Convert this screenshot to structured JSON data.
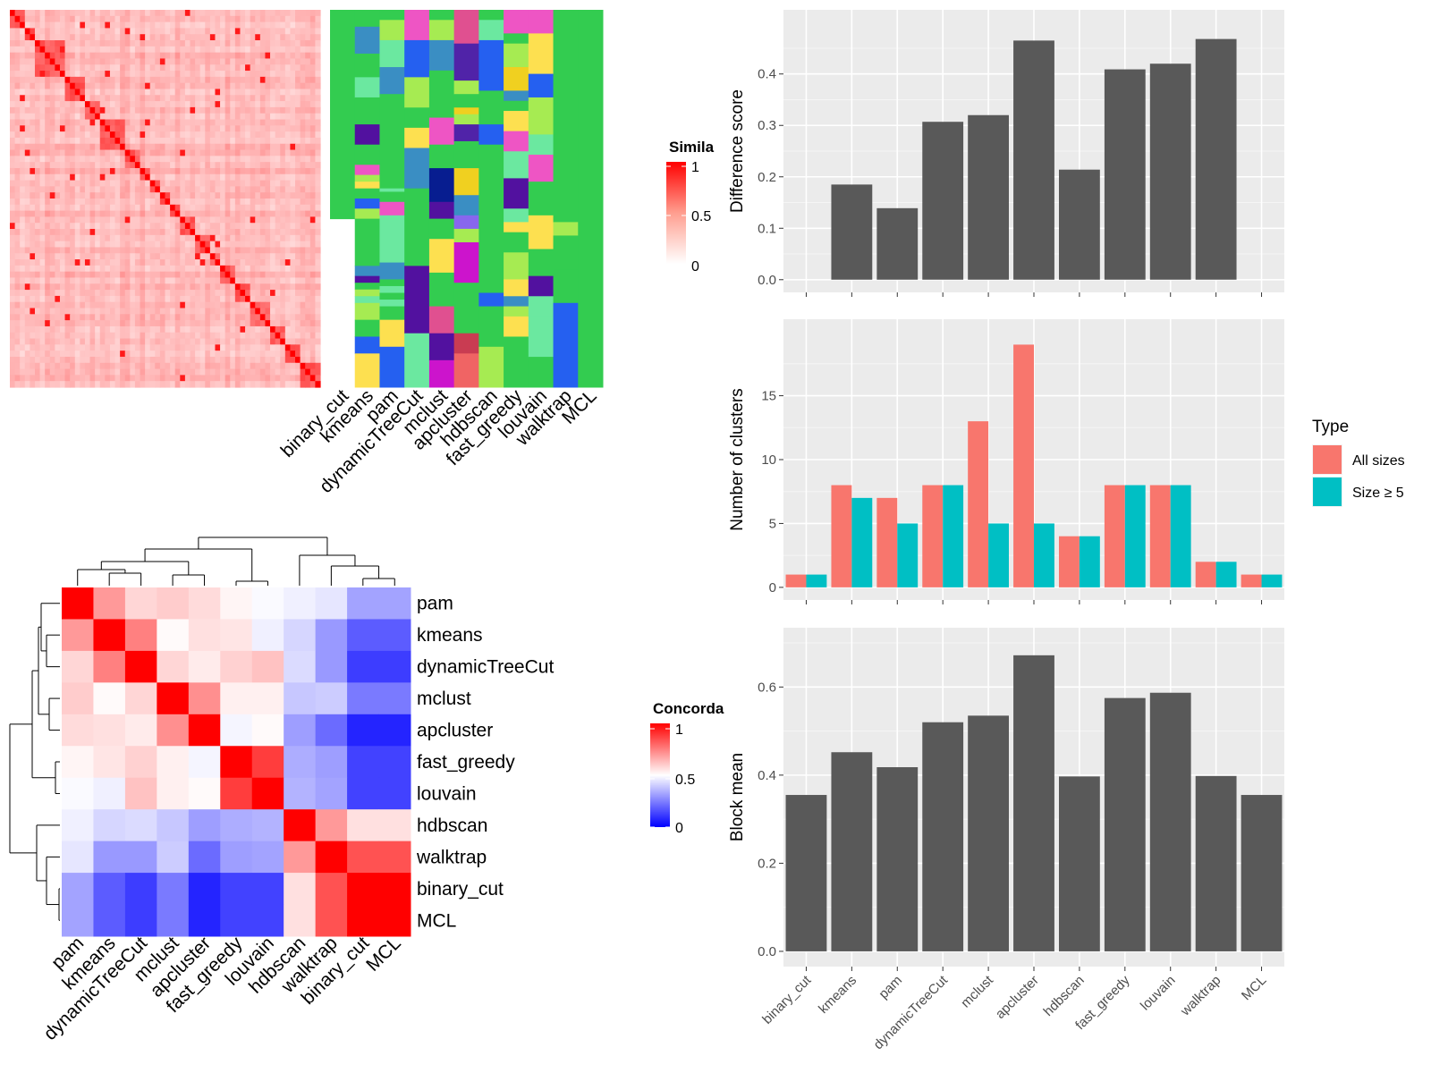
{
  "colors": {
    "panel_bg": "#EBEBEB",
    "grid": "#FFFFFF",
    "bar_gray": "#595959",
    "all_sizes": "#F8766D",
    "size_ge5": "#00BFC4",
    "sim_high": "#FF0000",
    "conc_low": "#0000FF"
  },
  "similarity_heatmap": {
    "legend_title": "Simila",
    "legend_ticks": [
      "1",
      "0.5",
      "0"
    ],
    "n": 62,
    "method_labels": [
      "binary_cut",
      "kmeans",
      "pam",
      "dynamicTreeCut",
      "mclust",
      "apcluster",
      "hdbscan",
      "fast_greedy",
      "louvain",
      "walktrap",
      "MCL"
    ],
    "palette": [
      "#33CC50",
      "#A6EB52",
      "#FDE050",
      "#F0D020",
      "#EE55C4",
      "#CC14CC",
      "#E05090",
      "#5080CF",
      "#2560F0",
      "#3A8EC3",
      "#6BE8A0",
      "#52119F",
      "#5023A8",
      "#071D90",
      "#C93C52",
      "#F06464",
      "#46B6A2",
      "#8866EE"
    ],
    "cluster_columns": [
      [
        {
          "s": 0,
          "n": 62,
          "c": 0
        }
      ],
      [
        {
          "s": 0,
          "n": 5,
          "c": 0
        },
        {
          "s": 5,
          "n": 8,
          "c": 9
        },
        {
          "s": 13,
          "n": 7,
          "c": 0
        },
        {
          "s": 20,
          "n": 6,
          "c": 10
        },
        {
          "s": 26,
          "n": 8,
          "c": 0
        },
        {
          "s": 34,
          "n": 6,
          "c": 11
        },
        {
          "s": 40,
          "n": 6,
          "c": 0
        },
        {
          "s": 46,
          "n": 3,
          "c": 4
        },
        {
          "s": 49,
          "n": 2,
          "c": 1
        },
        {
          "s": 51,
          "n": 2,
          "c": 2
        },
        {
          "s": 53,
          "n": 3,
          "c": 0
        },
        {
          "s": 56,
          "n": 3,
          "c": 8
        },
        {
          "s": 59,
          "n": 3,
          "c": 1
        },
        {
          "s": 62,
          "n": 14,
          "c": 0
        },
        {
          "s": 76,
          "n": 3,
          "c": 9
        },
        {
          "s": 79,
          "n": 2,
          "c": 11
        },
        {
          "s": 81,
          "n": 2,
          "c": 0
        },
        {
          "s": 83,
          "n": 2,
          "c": 1
        },
        {
          "s": 85,
          "n": 2,
          "c": 10
        },
        {
          "s": 87,
          "n": 5,
          "c": 1
        },
        {
          "s": 92,
          "n": 5,
          "c": 0
        },
        {
          "s": 97,
          "n": 5,
          "c": 8
        },
        {
          "s": 102,
          "n": 10,
          "c": 2
        }
      ],
      [
        {
          "s": 0,
          "n": 3,
          "c": 0
        },
        {
          "s": 3,
          "n": 6,
          "c": 1
        },
        {
          "s": 9,
          "n": 8,
          "c": 10
        },
        {
          "s": 17,
          "n": 8,
          "c": 9
        },
        {
          "s": 25,
          "n": 28,
          "c": 0
        },
        {
          "s": 53,
          "n": 1,
          "c": 10
        },
        {
          "s": 54,
          "n": 3,
          "c": 0
        },
        {
          "s": 57,
          "n": 4,
          "c": 4
        },
        {
          "s": 61,
          "n": 14,
          "c": 10
        },
        {
          "s": 75,
          "n": 5,
          "c": 9
        },
        {
          "s": 80,
          "n": 2,
          "c": 0
        },
        {
          "s": 82,
          "n": 2,
          "c": 10
        },
        {
          "s": 84,
          "n": 2,
          "c": 0
        },
        {
          "s": 86,
          "n": 2,
          "c": 10
        },
        {
          "s": 88,
          "n": 4,
          "c": 0
        },
        {
          "s": 92,
          "n": 8,
          "c": 2
        },
        {
          "s": 100,
          "n": 12,
          "c": 8
        }
      ],
      [
        {
          "s": 0,
          "n": 9,
          "c": 4
        },
        {
          "s": 9,
          "n": 11,
          "c": 8
        },
        {
          "s": 20,
          "n": 9,
          "c": 1
        },
        {
          "s": 29,
          "n": 6,
          "c": 0
        },
        {
          "s": 35,
          "n": 6,
          "c": 2
        },
        {
          "s": 41,
          "n": 12,
          "c": 9
        },
        {
          "s": 53,
          "n": 23,
          "c": 0
        },
        {
          "s": 76,
          "n": 20,
          "c": 11
        },
        {
          "s": 96,
          "n": 16,
          "c": 10
        }
      ],
      [
        {
          "s": 0,
          "n": 3,
          "c": 0
        },
        {
          "s": 3,
          "n": 6,
          "c": 1
        },
        {
          "s": 9,
          "n": 9,
          "c": 9
        },
        {
          "s": 18,
          "n": 14,
          "c": 0
        },
        {
          "s": 32,
          "n": 8,
          "c": 4
        },
        {
          "s": 40,
          "n": 7,
          "c": 0
        },
        {
          "s": 47,
          "n": 10,
          "c": 13
        },
        {
          "s": 57,
          "n": 5,
          "c": 11
        },
        {
          "s": 62,
          "n": 6,
          "c": 0
        },
        {
          "s": 68,
          "n": 10,
          "c": 2
        },
        {
          "s": 78,
          "n": 10,
          "c": 0
        },
        {
          "s": 88,
          "n": 8,
          "c": 6
        },
        {
          "s": 96,
          "n": 8,
          "c": 11
        },
        {
          "s": 104,
          "n": 8,
          "c": 5
        }
      ],
      [
        {
          "s": 0,
          "n": 10,
          "c": 6
        },
        {
          "s": 10,
          "n": 11,
          "c": 12
        },
        {
          "s": 21,
          "n": 4,
          "c": 1
        },
        {
          "s": 25,
          "n": 4,
          "c": 0
        },
        {
          "s": 29,
          "n": 2,
          "c": 3
        },
        {
          "s": 31,
          "n": 3,
          "c": 1
        },
        {
          "s": 34,
          "n": 5,
          "c": 12
        },
        {
          "s": 39,
          "n": 8,
          "c": 0
        },
        {
          "s": 47,
          "n": 8,
          "c": 3
        },
        {
          "s": 55,
          "n": 6,
          "c": 9
        },
        {
          "s": 61,
          "n": 4,
          "c": 17
        },
        {
          "s": 65,
          "n": 4,
          "c": 1
        },
        {
          "s": 69,
          "n": 12,
          "c": 5
        },
        {
          "s": 81,
          "n": 15,
          "c": 0
        },
        {
          "s": 96,
          "n": 6,
          "c": 14
        },
        {
          "s": 102,
          "n": 10,
          "c": 15
        }
      ],
      [
        {
          "s": 0,
          "n": 3,
          "c": 0
        },
        {
          "s": 3,
          "n": 6,
          "c": 10
        },
        {
          "s": 9,
          "n": 15,
          "c": 8
        },
        {
          "s": 24,
          "n": 10,
          "c": 0
        },
        {
          "s": 34,
          "n": 6,
          "c": 8
        },
        {
          "s": 40,
          "n": 16,
          "c": 0
        },
        {
          "s": 56,
          "n": 4,
          "c": 0
        },
        {
          "s": 60,
          "n": 24,
          "c": 0
        },
        {
          "s": 84,
          "n": 4,
          "c": 8
        },
        {
          "s": 88,
          "n": 12,
          "c": 0
        },
        {
          "s": 100,
          "n": 12,
          "c": 1
        }
      ],
      [
        {
          "s": 0,
          "n": 7,
          "c": 4
        },
        {
          "s": 7,
          "n": 3,
          "c": 0
        },
        {
          "s": 10,
          "n": 7,
          "c": 1
        },
        {
          "s": 17,
          "n": 7,
          "c": 3
        },
        {
          "s": 24,
          "n": 3,
          "c": 9
        },
        {
          "s": 27,
          "n": 3,
          "c": 0
        },
        {
          "s": 30,
          "n": 6,
          "c": 2
        },
        {
          "s": 36,
          "n": 6,
          "c": 4
        },
        {
          "s": 42,
          "n": 8,
          "c": 10
        },
        {
          "s": 50,
          "n": 9,
          "c": 11
        },
        {
          "s": 59,
          "n": 4,
          "c": 10
        },
        {
          "s": 63,
          "n": 3,
          "c": 2
        },
        {
          "s": 66,
          "n": 6,
          "c": 0
        },
        {
          "s": 72,
          "n": 8,
          "c": 1
        },
        {
          "s": 80,
          "n": 5,
          "c": 2
        },
        {
          "s": 85,
          "n": 3,
          "c": 9
        },
        {
          "s": 88,
          "n": 3,
          "c": 1
        },
        {
          "s": 91,
          "n": 6,
          "c": 2
        },
        {
          "s": 97,
          "n": 15,
          "c": 0
        }
      ],
      [
        {
          "s": 0,
          "n": 7,
          "c": 4
        },
        {
          "s": 7,
          "n": 12,
          "c": 2
        },
        {
          "s": 19,
          "n": 7,
          "c": 8
        },
        {
          "s": 26,
          "n": 11,
          "c": 1
        },
        {
          "s": 37,
          "n": 6,
          "c": 10
        },
        {
          "s": 43,
          "n": 8,
          "c": 4
        },
        {
          "s": 51,
          "n": 10,
          "c": 0
        },
        {
          "s": 61,
          "n": 10,
          "c": 2
        },
        {
          "s": 71,
          "n": 8,
          "c": 0
        },
        {
          "s": 79,
          "n": 6,
          "c": 11
        },
        {
          "s": 85,
          "n": 3,
          "c": 10
        },
        {
          "s": 88,
          "n": 3,
          "c": 10
        },
        {
          "s": 91,
          "n": 12,
          "c": 10
        },
        {
          "s": 103,
          "n": 9,
          "c": 0
        }
      ],
      [
        {
          "s": 0,
          "n": 63,
          "c": 0
        },
        {
          "s": 63,
          "n": 4,
          "c": 1
        },
        {
          "s": 67,
          "n": 10,
          "c": 0
        },
        {
          "s": 77,
          "n": 10,
          "c": 0
        },
        {
          "s": 87,
          "n": 25,
          "c": 8
        }
      ],
      [
        {
          "s": 0,
          "n": 112,
          "c": 0
        }
      ]
    ]
  },
  "concordance_heatmap": {
    "legend_title": "Concorda",
    "legend_ticks": [
      "1",
      "0.5",
      "0"
    ],
    "row_labels": [
      "pam",
      "kmeans",
      "dynamicTreeCut",
      "mclust",
      "apcluster",
      "fast_greedy",
      "louvain",
      "hdbscan",
      "walktrap",
      "binary_cut",
      "MCL"
    ],
    "col_labels": [
      "pam",
      "kmeans",
      "dynamicTreeCut",
      "mclust",
      "apcluster",
      "fast_greedy",
      "louvain",
      "hdbscan",
      "walktrap",
      "binary_cut",
      "MCL"
    ],
    "values": [
      [
        1.0,
        0.7,
        0.58,
        0.6,
        0.57,
        0.52,
        0.49,
        0.47,
        0.45,
        0.32,
        0.32
      ],
      [
        0.7,
        1.0,
        0.75,
        0.51,
        0.56,
        0.55,
        0.47,
        0.42,
        0.3,
        0.18,
        0.18
      ],
      [
        0.58,
        0.75,
        1.0,
        0.58,
        0.54,
        0.59,
        0.62,
        0.43,
        0.3,
        0.12,
        0.12
      ],
      [
        0.6,
        0.51,
        0.58,
        1.0,
        0.72,
        0.53,
        0.53,
        0.39,
        0.4,
        0.24,
        0.24
      ],
      [
        0.57,
        0.56,
        0.54,
        0.72,
        1.0,
        0.48,
        0.51,
        0.31,
        0.21,
        0.07,
        0.07
      ],
      [
        0.52,
        0.55,
        0.59,
        0.53,
        0.48,
        1.0,
        0.88,
        0.34,
        0.31,
        0.13,
        0.13
      ],
      [
        0.49,
        0.47,
        0.62,
        0.53,
        0.51,
        0.88,
        1.0,
        0.35,
        0.32,
        0.13,
        0.13
      ],
      [
        0.47,
        0.42,
        0.43,
        0.39,
        0.31,
        0.34,
        0.35,
        1.0,
        0.7,
        0.56,
        0.56
      ],
      [
        0.45,
        0.3,
        0.3,
        0.4,
        0.21,
        0.31,
        0.32,
        0.7,
        1.0,
        0.84,
        0.84
      ],
      [
        0.32,
        0.18,
        0.12,
        0.24,
        0.07,
        0.13,
        0.13,
        0.56,
        0.84,
        1.0,
        1.0
      ],
      [
        0.32,
        0.18,
        0.12,
        0.24,
        0.07,
        0.13,
        0.13,
        0.56,
        0.84,
        1.0,
        1.0
      ]
    ]
  },
  "chart_data": [
    {
      "type": "bar",
      "panel": "Difference score",
      "ylabel": "Difference score",
      "categories": [
        "binary_cut",
        "kmeans",
        "pam",
        "dynamicTreeCut",
        "mclust",
        "apcluster",
        "hdbscan",
        "fast_greedy",
        "louvain",
        "walktrap",
        "MCL"
      ],
      "values": [
        0.0,
        0.185,
        0.139,
        0.307,
        0.32,
        0.465,
        0.214,
        0.409,
        0.42,
        0.468,
        0.0
      ],
      "ylim": [
        0,
        0.5
      ],
      "yticks": [
        "0.0",
        "0.1",
        "0.2",
        "0.3",
        "0.4"
      ],
      "grid": true
    },
    {
      "type": "bar",
      "panel": "Number of clusters",
      "ylabel": "Number of clusters",
      "categories": [
        "binary_cut",
        "kmeans",
        "pam",
        "dynamicTreeCut",
        "mclust",
        "apcluster",
        "hdbscan",
        "fast_greedy",
        "louvain",
        "walktrap",
        "MCL"
      ],
      "series": [
        {
          "name": "All sizes",
          "values": [
            1,
            8,
            7,
            8,
            13,
            19,
            4,
            8,
            8,
            2,
            1
          ]
        },
        {
          "name": "Size ≥ 5",
          "values": [
            1,
            7,
            5,
            8,
            5,
            5,
            4,
            8,
            8,
            2,
            1
          ]
        }
      ],
      "ylim": [
        0,
        20
      ],
      "yticks": [
        "0",
        "5",
        "10",
        "15"
      ],
      "legend_title": "Type",
      "legend_position": "right",
      "grid": true
    },
    {
      "type": "bar",
      "panel": "Block mean",
      "ylabel": "Block mean",
      "categories": [
        "binary_cut",
        "kmeans",
        "pam",
        "dynamicTreeCut",
        "mclust",
        "apcluster",
        "hdbscan",
        "fast_greedy",
        "louvain",
        "walktrap",
        "MCL"
      ],
      "values": [
        0.355,
        0.452,
        0.418,
        0.52,
        0.535,
        0.672,
        0.397,
        0.575,
        0.587,
        0.398,
        0.355
      ],
      "ylim": [
        0,
        0.7
      ],
      "yticks": [
        "0.0",
        "0.2",
        "0.4",
        "0.6"
      ],
      "grid": true
    }
  ]
}
